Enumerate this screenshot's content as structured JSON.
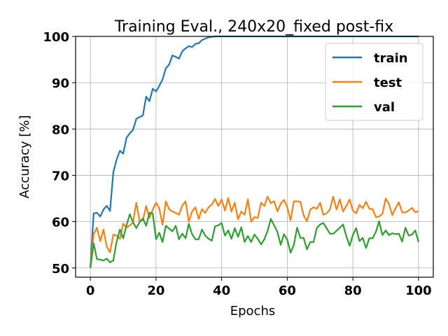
{
  "chart_data": {
    "type": "line",
    "title": "Training Eval., 240x20_fixed post-fix",
    "xlabel": "Epochs",
    "ylabel": "Accuracy [%]",
    "xlim": [
      -4.5,
      104.5
    ],
    "ylim": [
      48,
      100
    ],
    "xticks": [
      0,
      20,
      40,
      60,
      80,
      100
    ],
    "yticks": [
      50,
      60,
      70,
      80,
      90,
      100
    ],
    "grid": true,
    "legend_position": "top-right",
    "x": [
      0,
      1,
      2,
      3,
      4,
      5,
      6,
      7,
      8,
      9,
      10,
      11,
      12,
      13,
      14,
      15,
      16,
      17,
      18,
      19,
      20,
      21,
      22,
      23,
      24,
      25,
      26,
      27,
      28,
      29,
      30,
      31,
      32,
      33,
      34,
      35,
      36,
      37,
      38,
      39,
      40,
      41,
      42,
      43,
      44,
      45,
      46,
      47,
      48,
      49,
      50,
      51,
      52,
      53,
      54,
      55,
      56,
      57,
      58,
      59,
      60,
      61,
      62,
      63,
      64,
      65,
      66,
      67,
      68,
      69,
      70,
      71,
      72,
      73,
      74,
      75,
      76,
      77,
      78,
      79,
      80,
      81,
      82,
      83,
      84,
      85,
      86,
      87,
      88,
      89,
      90,
      91,
      92,
      93,
      94,
      95,
      96,
      97,
      98,
      99,
      100
    ],
    "series": [
      {
        "name": "train",
        "color": "#1f77b4",
        "values": [
          50.2,
          61.8,
          61.9,
          61.1,
          62.6,
          63.4,
          62.3,
          70.7,
          73.4,
          75.3,
          74.7,
          78.1,
          79.1,
          79.8,
          82.2,
          82.6,
          82.9,
          87.0,
          86.0,
          88.7,
          88.1,
          89.3,
          90.7,
          93.1,
          93.9,
          95.9,
          95.6,
          95.2,
          96.8,
          97.4,
          97.9,
          97.7,
          98.4,
          98.5,
          99.2,
          99.5,
          99.8,
          99.9,
          100,
          100,
          100,
          100,
          100,
          100,
          100,
          100,
          100,
          100,
          100,
          100,
          100,
          100,
          100,
          100,
          100,
          100,
          100,
          100,
          100,
          100,
          100,
          100,
          100,
          100,
          100,
          100,
          100,
          100,
          100,
          100,
          100,
          100,
          100,
          100,
          100,
          100,
          100,
          100,
          100,
          100,
          100,
          100,
          100,
          100,
          100,
          100,
          100,
          100,
          100,
          100,
          100,
          100,
          100,
          100,
          100,
          100,
          100,
          100,
          100,
          100,
          100
        ]
      },
      {
        "name": "test",
        "color": "#ff7f0e",
        "values": [
          50.2,
          57.3,
          58.7,
          55.8,
          58.3,
          54.6,
          53.4,
          57.2,
          57.0,
          56.3,
          59.6,
          58.7,
          59.2,
          59.8,
          64.1,
          60.2,
          60.3,
          63.4,
          60.8,
          62.6,
          64.1,
          62.9,
          59.3,
          64.4,
          62.7,
          62.2,
          61.9,
          61.5,
          63.5,
          64.4,
          60.0,
          62.2,
          63.1,
          60.6,
          62.7,
          61.9,
          63.1,
          63.7,
          64.9,
          63.4,
          64.8,
          62.4,
          65.1,
          62.2,
          64.1,
          60.5,
          62.2,
          61.5,
          64.8,
          60.0,
          61.0,
          60.8,
          64.1,
          63.4,
          65.4,
          64.0,
          64.4,
          62.2,
          63.9,
          64.7,
          63.1,
          60.3,
          64.4,
          64.4,
          64.3,
          61.3,
          60.1,
          62.6,
          63.1,
          62.8,
          64.1,
          61.5,
          61.8,
          62.6,
          65.4,
          62.6,
          64.8,
          62.2,
          63.4,
          64.8,
          62.4,
          61.8,
          63.6,
          62.9,
          64.3,
          62.8,
          62.7,
          61.0,
          61.1,
          61.7,
          65.0,
          63.8,
          61.4,
          62.9,
          64.2,
          62.0,
          62.0,
          62.4,
          63.0,
          62.0,
          62.3
        ]
      },
      {
        "name": "val",
        "color": "#2ca02c",
        "values": [
          50.0,
          55.3,
          51.9,
          51.8,
          51.6,
          52.0,
          51.2,
          51.6,
          55.7,
          58.3,
          56.4,
          59.2,
          61.6,
          59.9,
          58.6,
          59.9,
          60.7,
          59.1,
          61.9,
          61.8,
          56.2,
          57.6,
          55.6,
          59.1,
          58.5,
          57.9,
          59.1,
          56.2,
          57.4,
          56.4,
          59.5,
          57.3,
          56.2,
          56.2,
          58.3,
          57.0,
          56.3,
          55.9,
          59.0,
          59.2,
          59.7,
          57.0,
          58.1,
          56.3,
          58.6,
          56.7,
          58.8,
          55.6,
          56.9,
          55.6,
          57.2,
          56.3,
          55.1,
          56.2,
          58.0,
          60.6,
          59.2,
          57.8,
          55.0,
          57.3,
          56.1,
          53.3,
          55.0,
          58.7,
          56.5,
          56.5,
          54.0,
          55.6,
          55.6,
          58.6,
          59.4,
          59.7,
          58.6,
          57.4,
          57.4,
          58.0,
          58.7,
          59.4,
          56.8,
          54.8,
          57.1,
          58.6,
          55.8,
          56.5,
          54.3,
          56.4,
          56.4,
          57.8,
          60.1,
          57.1,
          58.1,
          57.1,
          57.5,
          57.3,
          57.4,
          55.7,
          58.7,
          57.0,
          57.2,
          58.1,
          55.6
        ]
      }
    ]
  }
}
